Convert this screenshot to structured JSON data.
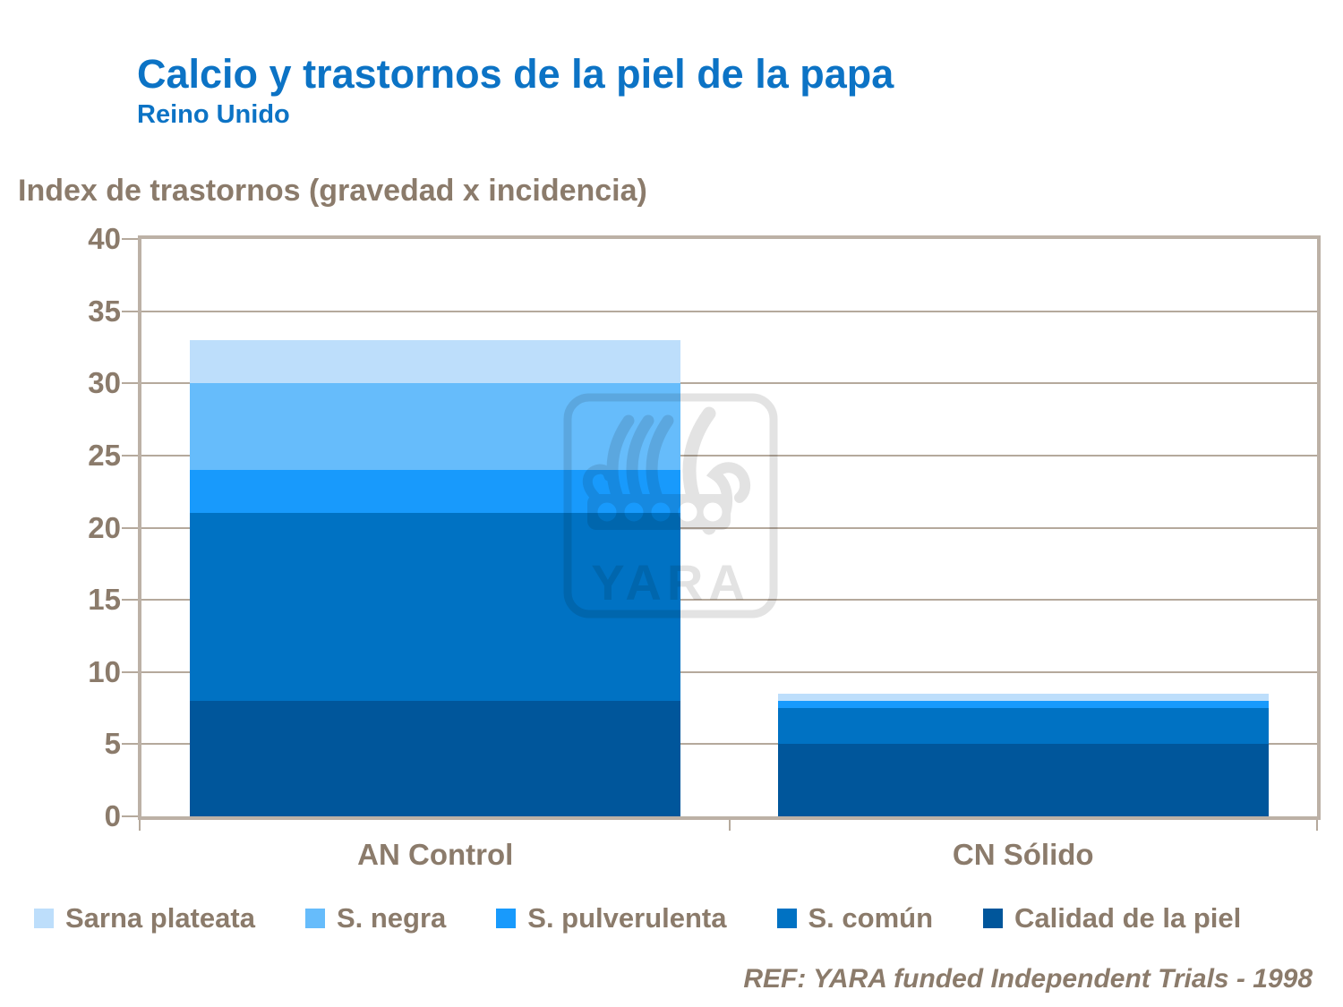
{
  "header": {
    "title": "Calcio y trastornos de la piel de la papa",
    "subtitle": "Reino Unido"
  },
  "axis_title": "Index de trastornos (gravedad x incidencia)",
  "footer": {
    "ref": "REF: YARA funded Independent Trials - 1998"
  },
  "watermark": {
    "label": "YARA",
    "color": "#E3E3E3"
  },
  "colors": {
    "title_blue": "#0C73C5",
    "text_brown": "#8B7B6B",
    "frame": "#BCB1A6",
    "grid": "#B5A99C"
  },
  "chart_data": {
    "type": "bar",
    "stacked": true,
    "categories": [
      "AN Control",
      "CN Sólido"
    ],
    "series": [
      {
        "name": "Calidad de la piel",
        "color": "#00569B",
        "values": [
          8,
          5
        ]
      },
      {
        "name": "S. común",
        "color": "#0072C3",
        "values": [
          13,
          2.5
        ]
      },
      {
        "name": "S. pulverulenta",
        "color": "#189AFC",
        "values": [
          3,
          0.5
        ]
      },
      {
        "name": "S. negra",
        "color": "#66BCFB",
        "values": [
          6,
          0
        ]
      },
      {
        "name": "Sarna plateata",
        "color": "#BDDEFB",
        "values": [
          3,
          0.5
        ]
      }
    ],
    "totals": [
      33,
      8.5
    ],
    "title": "Calcio y trastornos de la piel de la papa",
    "xlabel": "",
    "ylabel": "Index de trastornos (gravedad x incidencia)",
    "ylim": [
      0,
      40
    ],
    "ytick_step": 5,
    "grid": true,
    "legend_position": "bottom",
    "legend": [
      {
        "label": "Sarna plateata",
        "color": "#BDDEFB"
      },
      {
        "label": "S. negra",
        "color": "#66BCFB"
      },
      {
        "label": "S. pulverulenta",
        "color": "#189AFC"
      },
      {
        "label": "S. común",
        "color": "#0072C3"
      },
      {
        "label": "Calidad de la piel",
        "color": "#00569B"
      }
    ]
  }
}
